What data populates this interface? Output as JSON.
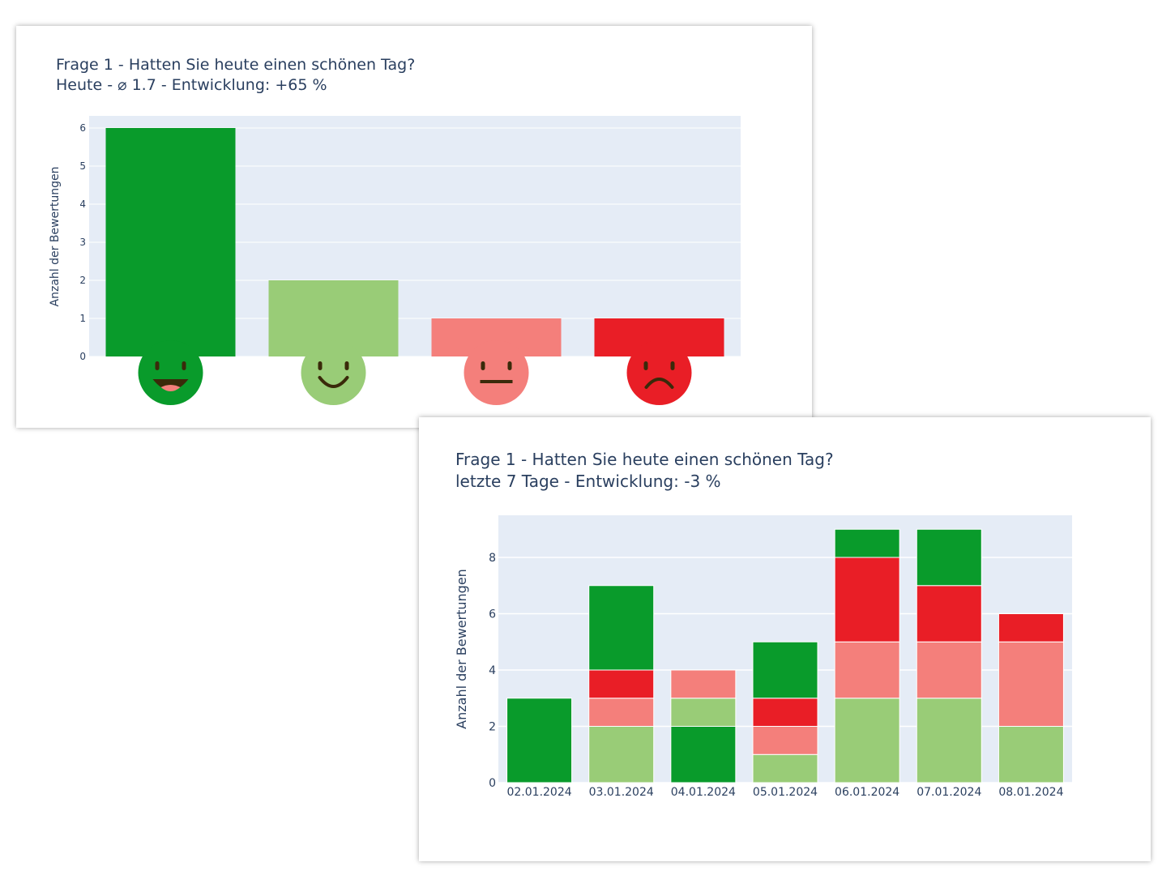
{
  "chart_data": [
    {
      "type": "bar",
      "title_line1": "Frage 1 - Hatten Sie heute einen schönen Tag?",
      "title_line2": "Heute - ⌀ 1.7 - Entwicklung: +65 %",
      "ylabel": "Anzahl der Bewertungen",
      "xlabel": "",
      "categories": [
        "very-happy",
        "happy",
        "neutral",
        "sad"
      ],
      "category_icons": [
        "laughing-face-icon",
        "smiling-face-icon",
        "neutral-face-icon",
        "frowning-face-icon"
      ],
      "values": [
        6,
        2,
        1,
        1
      ],
      "colors": [
        "#099b2b",
        "#99cc77",
        "#f47f7b",
        "#e91e26"
      ],
      "ylim": [
        0,
        6.3
      ],
      "yticks": [
        "0",
        "1",
        "2",
        "3",
        "4",
        "5",
        "6"
      ],
      "grid": true
    },
    {
      "type": "bar",
      "stacked": true,
      "title_line1": "Frage 1 - Hatten Sie heute einen schönen Tag?",
      "title_line2": "letzte 7 Tage - Entwicklung: -3 %",
      "ylabel": "Anzahl der Bewertungen",
      "xlabel": "",
      "categories": [
        "02.01.2024",
        "03.01.2024",
        "04.01.2024",
        "05.01.2024",
        "06.01.2024",
        "07.01.2024",
        "08.01.2024"
      ],
      "stacks": [
        [
          {
            "rating": "very-happy",
            "value": 3
          }
        ],
        [
          {
            "rating": "happy",
            "value": 2
          },
          {
            "rating": "neutral",
            "value": 1
          },
          {
            "rating": "sad",
            "value": 1
          },
          {
            "rating": "very-happy",
            "value": 3
          }
        ],
        [
          {
            "rating": "very-happy",
            "value": 2
          },
          {
            "rating": "happy",
            "value": 1
          },
          {
            "rating": "neutral",
            "value": 1
          }
        ],
        [
          {
            "rating": "happy",
            "value": 1
          },
          {
            "rating": "neutral",
            "value": 1
          },
          {
            "rating": "sad",
            "value": 1
          },
          {
            "rating": "very-happy",
            "value": 2
          }
        ],
        [
          {
            "rating": "happy",
            "value": 3
          },
          {
            "rating": "neutral",
            "value": 2
          },
          {
            "rating": "sad",
            "value": 3
          },
          {
            "rating": "very-happy",
            "value": 1
          }
        ],
        [
          {
            "rating": "happy",
            "value": 3
          },
          {
            "rating": "neutral",
            "value": 2
          },
          {
            "rating": "sad",
            "value": 2
          },
          {
            "rating": "very-happy",
            "value": 2
          }
        ],
        [
          {
            "rating": "happy",
            "value": 2
          },
          {
            "rating": "neutral",
            "value": 3
          },
          {
            "rating": "sad",
            "value": 1
          }
        ]
      ],
      "rating_colors": {
        "very-happy": "#099b2b",
        "happy": "#99cc77",
        "neutral": "#f47f7b",
        "sad": "#e91e26"
      },
      "ylim": [
        0,
        9.5
      ],
      "yticks": [
        "0",
        "2",
        "4",
        "6",
        "8"
      ],
      "grid": true
    }
  ]
}
